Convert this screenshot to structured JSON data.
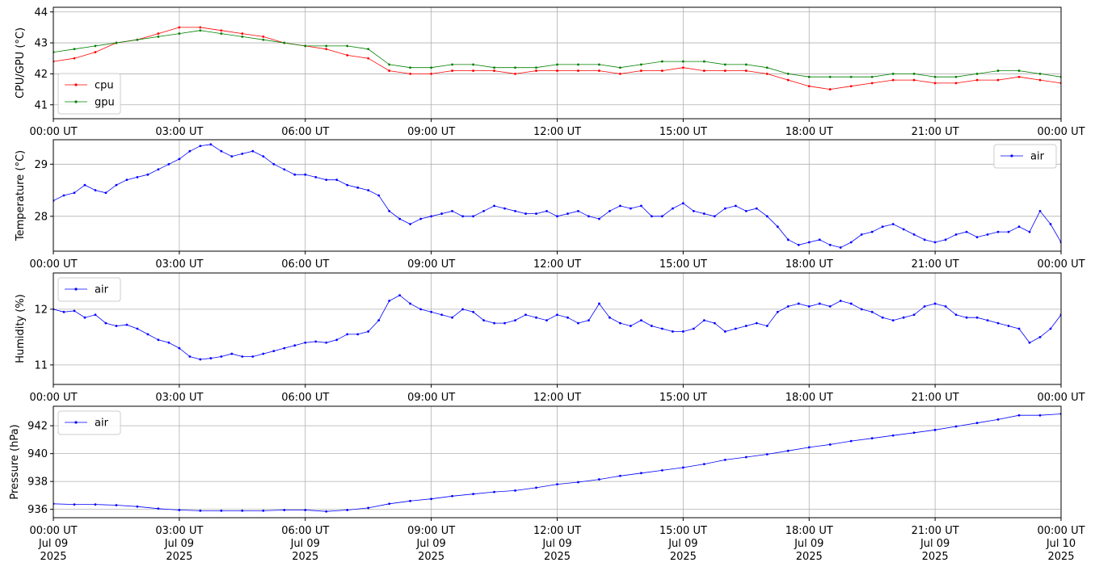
{
  "chart_data": [
    {
      "type": "line",
      "ylabel": "CPU/GPU (°C)",
      "ylim": [
        40.55,
        44.15
      ],
      "yticks": [
        41,
        42,
        43,
        44
      ],
      "xlim_hours": [
        0,
        24
      ],
      "xticks": [
        "00:00 UT",
        "03:00 UT",
        "06:00 UT",
        "09:00 UT",
        "12:00 UT",
        "15:00 UT",
        "18:00 UT",
        "21:00 UT",
        "00:00 UT"
      ],
      "grid": true,
      "legend": "bottom-left",
      "series": [
        {
          "name": "cpu",
          "color": "#ff0000",
          "x_hours": [
            0,
            0.5,
            1,
            1.5,
            2,
            2.5,
            3,
            3.5,
            4,
            4.5,
            5,
            5.5,
            6,
            6.5,
            7,
            7.5,
            8,
            8.5,
            9,
            9.5,
            10,
            10.5,
            11,
            11.5,
            12,
            12.5,
            13,
            13.5,
            14,
            14.5,
            15,
            15.5,
            16,
            16.5,
            17,
            17.5,
            18,
            18.5,
            19,
            19.5,
            20,
            20.5,
            21,
            21.5,
            22,
            22.5,
            23,
            23.5,
            24
          ],
          "values": [
            42.4,
            42.5,
            42.7,
            43.0,
            43.1,
            43.3,
            43.5,
            43.5,
            43.4,
            43.3,
            43.2,
            43.0,
            42.9,
            42.8,
            42.6,
            42.5,
            42.1,
            42.0,
            42.0,
            42.1,
            42.1,
            42.1,
            42.0,
            42.1,
            42.1,
            42.1,
            42.1,
            42.0,
            42.1,
            42.1,
            42.2,
            42.1,
            42.1,
            42.1,
            42.0,
            41.8,
            41.6,
            41.5,
            41.6,
            41.7,
            41.8,
            41.8,
            41.7,
            41.7,
            41.8,
            41.8,
            41.9,
            41.8,
            41.7
          ]
        },
        {
          "name": "gpu",
          "color": "#008000",
          "x_hours": [
            0,
            0.5,
            1,
            1.5,
            2,
            2.5,
            3,
            3.5,
            4,
            4.5,
            5,
            5.5,
            6,
            6.5,
            7,
            7.5,
            8,
            8.5,
            9,
            9.5,
            10,
            10.5,
            11,
            11.5,
            12,
            12.5,
            13,
            13.5,
            14,
            14.5,
            15,
            15.5,
            16,
            16.5,
            17,
            17.5,
            18,
            18.5,
            19,
            19.5,
            20,
            20.5,
            21,
            21.5,
            22,
            22.5,
            23,
            23.5,
            24
          ],
          "values": [
            42.7,
            42.8,
            42.9,
            43.0,
            43.1,
            43.2,
            43.3,
            43.4,
            43.3,
            43.2,
            43.1,
            43.0,
            42.9,
            42.9,
            42.9,
            42.8,
            42.3,
            42.2,
            42.2,
            42.3,
            42.3,
            42.2,
            42.2,
            42.2,
            42.3,
            42.3,
            42.3,
            42.2,
            42.3,
            42.4,
            42.4,
            42.4,
            42.3,
            42.3,
            42.2,
            42.0,
            41.9,
            41.9,
            41.9,
            41.9,
            42.0,
            42.0,
            41.9,
            41.9,
            42.0,
            42.1,
            42.1,
            42.0,
            41.9
          ]
        }
      ]
    },
    {
      "type": "line",
      "ylabel": "Temperature (°C)",
      "ylim": [
        27.33,
        29.47
      ],
      "yticks": [
        28,
        29
      ],
      "xlim_hours": [
        0,
        24
      ],
      "xticks": [
        "00:00 UT",
        "03:00 UT",
        "06:00 UT",
        "09:00 UT",
        "12:00 UT",
        "15:00 UT",
        "18:00 UT",
        "21:00 UT",
        "00:00 UT"
      ],
      "grid": true,
      "legend": "top-right",
      "series": [
        {
          "name": "air",
          "color": "#0000ff",
          "x_hours": [
            0,
            0.25,
            0.5,
            0.75,
            1.0,
            1.25,
            1.5,
            1.75,
            2.0,
            2.25,
            2.5,
            2.75,
            3.0,
            3.25,
            3.5,
            3.75,
            4.0,
            4.25,
            4.5,
            4.75,
            5.0,
            5.25,
            5.5,
            5.75,
            6.0,
            6.25,
            6.5,
            6.75,
            7.0,
            7.25,
            7.5,
            7.75,
            8.0,
            8.25,
            8.5,
            8.75,
            9.0,
            9.25,
            9.5,
            9.75,
            10.0,
            10.25,
            10.5,
            10.75,
            11.0,
            11.25,
            11.5,
            11.75,
            12.0,
            12.25,
            12.5,
            12.75,
            13.0,
            13.25,
            13.5,
            13.75,
            14.0,
            14.25,
            14.5,
            14.75,
            15.0,
            15.25,
            15.5,
            15.75,
            16.0,
            16.25,
            16.5,
            16.75,
            17.0,
            17.25,
            17.5,
            17.75,
            18.0,
            18.25,
            18.5,
            18.75,
            19.0,
            19.25,
            19.5,
            19.75,
            20.0,
            20.25,
            20.5,
            20.75,
            21.0,
            21.25,
            21.5,
            21.75,
            22.0,
            22.25,
            22.5,
            22.75,
            23.0,
            23.25,
            23.5,
            23.75,
            24.0
          ],
          "values": [
            28.3,
            28.4,
            28.45,
            28.6,
            28.5,
            28.45,
            28.6,
            28.7,
            28.75,
            28.8,
            28.9,
            29.0,
            29.1,
            29.25,
            29.35,
            29.38,
            29.25,
            29.15,
            29.2,
            29.25,
            29.15,
            29.0,
            28.9,
            28.8,
            28.8,
            28.75,
            28.7,
            28.7,
            28.6,
            28.55,
            28.5,
            28.4,
            28.1,
            27.95,
            27.85,
            27.95,
            28.0,
            28.05,
            28.1,
            28.0,
            28.0,
            28.1,
            28.2,
            28.15,
            28.1,
            28.05,
            28.05,
            28.1,
            28.0,
            28.05,
            28.1,
            28.0,
            27.95,
            28.1,
            28.2,
            28.15,
            28.2,
            28.0,
            28.0,
            28.15,
            28.25,
            28.1,
            28.05,
            28.0,
            28.15,
            28.2,
            28.1,
            28.15,
            28.0,
            27.8,
            27.55,
            27.45,
            27.5,
            27.55,
            27.45,
            27.4,
            27.5,
            27.65,
            27.7,
            27.8,
            27.85,
            27.75,
            27.65,
            27.55,
            27.5,
            27.55,
            27.65,
            27.7,
            27.6,
            27.65,
            27.7,
            27.7,
            27.8,
            27.7,
            28.1,
            27.85,
            27.5
          ]
        }
      ]
    },
    {
      "type": "line",
      "ylabel": "Humidity (%)",
      "ylim": [
        10.65,
        12.65
      ],
      "yticks": [
        11,
        12
      ],
      "xlim_hours": [
        0,
        24
      ],
      "xticks": [
        "00:00 UT",
        "03:00 UT",
        "06:00 UT",
        "09:00 UT",
        "12:00 UT",
        "15:00 UT",
        "18:00 UT",
        "21:00 UT",
        "00:00 UT"
      ],
      "grid": true,
      "legend": "top-left",
      "series": [
        {
          "name": "air",
          "color": "#0000ff",
          "x_hours": [
            0,
            0.25,
            0.5,
            0.75,
            1.0,
            1.25,
            1.5,
            1.75,
            2.0,
            2.25,
            2.5,
            2.75,
            3.0,
            3.25,
            3.5,
            3.75,
            4.0,
            4.25,
            4.5,
            4.75,
            5.0,
            5.25,
            5.5,
            5.75,
            6.0,
            6.25,
            6.5,
            6.75,
            7.0,
            7.25,
            7.5,
            7.75,
            8.0,
            8.25,
            8.5,
            8.75,
            9.0,
            9.25,
            9.5,
            9.75,
            10.0,
            10.25,
            10.5,
            10.75,
            11.0,
            11.25,
            11.5,
            11.75,
            12.0,
            12.25,
            12.5,
            12.75,
            13.0,
            13.25,
            13.5,
            13.75,
            14.0,
            14.25,
            14.5,
            14.75,
            15.0,
            15.25,
            15.5,
            15.75,
            16.0,
            16.25,
            16.5,
            16.75,
            17.0,
            17.25,
            17.5,
            17.75,
            18.0,
            18.25,
            18.5,
            18.75,
            19.0,
            19.25,
            19.5,
            19.75,
            20.0,
            20.25,
            20.5,
            20.75,
            21.0,
            21.25,
            21.5,
            21.75,
            22.0,
            22.25,
            22.5,
            22.75,
            23.0,
            23.25,
            23.5,
            23.75,
            24.0
          ],
          "values": [
            12.0,
            11.95,
            11.97,
            11.85,
            11.9,
            11.75,
            11.7,
            11.72,
            11.65,
            11.55,
            11.45,
            11.4,
            11.3,
            11.15,
            11.1,
            11.12,
            11.15,
            11.2,
            11.15,
            11.15,
            11.2,
            11.25,
            11.3,
            11.35,
            11.4,
            11.42,
            11.4,
            11.45,
            11.55,
            11.55,
            11.6,
            11.8,
            12.15,
            12.25,
            12.1,
            12.0,
            11.95,
            11.9,
            11.85,
            12.0,
            11.95,
            11.8,
            11.75,
            11.75,
            11.8,
            11.9,
            11.85,
            11.8,
            11.9,
            11.85,
            11.75,
            11.8,
            12.1,
            11.85,
            11.75,
            11.7,
            11.8,
            11.7,
            11.65,
            11.6,
            11.6,
            11.65,
            11.8,
            11.75,
            11.6,
            11.65,
            11.7,
            11.75,
            11.7,
            11.95,
            12.05,
            12.1,
            12.05,
            12.1,
            12.05,
            12.15,
            12.1,
            12.0,
            11.95,
            11.85,
            11.8,
            11.85,
            11.9,
            12.05,
            12.1,
            12.05,
            11.9,
            11.85,
            11.85,
            11.8,
            11.75,
            11.7,
            11.65,
            11.4,
            11.5,
            11.65,
            11.9
          ]
        }
      ]
    },
    {
      "type": "line",
      "ylabel": "Pressure (hPa)",
      "ylim": [
        935.4,
        943.4
      ],
      "yticks": [
        936,
        938,
        940,
        942
      ],
      "xlim_hours": [
        0,
        24
      ],
      "xticks": [
        "00:00 UT\nJul 09\n2025",
        "03:00 UT\nJul 09\n2025",
        "06:00 UT\nJul 09\n2025",
        "09:00 UT\nJul 09\n2025",
        "12:00 UT\nJul 09\n2025",
        "15:00 UT\nJul 09\n2025",
        "18:00 UT\nJul 09\n2025",
        "21:00 UT\nJul 09\n2025",
        "00:00 UT\nJul 10\n2025"
      ],
      "grid": true,
      "legend": "top-left",
      "series": [
        {
          "name": "air",
          "color": "#0000ff",
          "x_hours": [
            0,
            0.5,
            1,
            1.5,
            2,
            2.5,
            3,
            3.5,
            4,
            4.5,
            5,
            5.5,
            6,
            6.5,
            7,
            7.5,
            8,
            8.5,
            9,
            9.5,
            10,
            10.5,
            11,
            11.5,
            12,
            12.5,
            13,
            13.5,
            14,
            14.5,
            15,
            15.5,
            16,
            16.5,
            17,
            17.5,
            18,
            18.5,
            19,
            19.5,
            20,
            20.5,
            21,
            21.5,
            22,
            22.5,
            23,
            23.5,
            24
          ],
          "values": [
            936.4,
            936.35,
            936.35,
            936.3,
            936.2,
            936.05,
            935.95,
            935.9,
            935.9,
            935.9,
            935.9,
            935.95,
            935.95,
            935.85,
            935.95,
            936.1,
            936.4,
            936.6,
            936.75,
            936.95,
            937.1,
            937.25,
            937.35,
            937.55,
            937.8,
            937.95,
            938.15,
            938.4,
            938.6,
            938.8,
            939.0,
            939.25,
            939.55,
            939.75,
            939.95,
            940.2,
            940.45,
            940.65,
            940.9,
            941.1,
            941.3,
            941.5,
            941.7,
            941.95,
            942.2,
            942.45,
            942.75,
            942.75,
            942.85
          ]
        }
      ]
    }
  ]
}
